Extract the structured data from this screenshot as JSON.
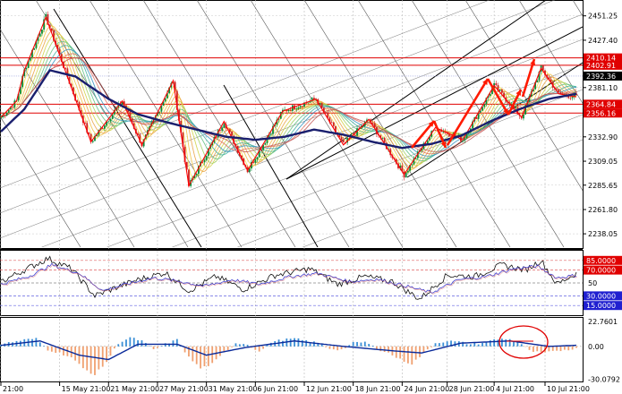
{
  "chart_data": {
    "type": "line",
    "panels": [
      {
        "name": "price",
        "ylim": [
          2225,
          2465
        ],
        "y_ticks": [
          "2451.25",
          "2427.40",
          "2402.91",
          "2381.10",
          "2356.16",
          "2332.90",
          "2309.05",
          "2285.65",
          "2261.80",
          "2238.05"
        ],
        "y_tick_values": [
          2451.25,
          2427.4,
          2402.91,
          2381.1,
          2356.16,
          2332.9,
          2309.05,
          2285.65,
          2261.8,
          2238.05
        ],
        "price_tags": [
          {
            "label": "2410.14",
            "value": 2410.14,
            "style": "red"
          },
          {
            "label": "2402.91",
            "value": 2402.91,
            "style": "red"
          },
          {
            "label": "2392.36",
            "value": 2392.36,
            "style": "black"
          },
          {
            "label": "2364.84",
            "value": 2364.84,
            "style": "red"
          },
          {
            "label": "2356.16",
            "value": 2356.16,
            "style": "red"
          }
        ],
        "horizontal_lines": [
          2410.14,
          2402.91,
          2364.84,
          2356.16
        ],
        "zigzag": [
          {
            "i": 0,
            "v": 2352
          },
          {
            "i": 8,
            "v": 2368
          },
          {
            "i": 12,
            "v": 2398
          },
          {
            "i": 23,
            "v": 2450
          },
          {
            "i": 46,
            "v": 2328
          },
          {
            "i": 62,
            "v": 2368
          },
          {
            "i": 72,
            "v": 2325
          },
          {
            "i": 88,
            "v": 2388
          },
          {
            "i": 96,
            "v": 2285
          },
          {
            "i": 114,
            "v": 2348
          },
          {
            "i": 126,
            "v": 2300
          },
          {
            "i": 144,
            "v": 2358
          },
          {
            "i": 161,
            "v": 2370
          },
          {
            "i": 175,
            "v": 2325
          },
          {
            "i": 188,
            "v": 2350
          },
          {
            "i": 206,
            "v": 2296
          },
          {
            "i": 222,
            "v": 2342
          },
          {
            "i": 236,
            "v": 2330
          },
          {
            "i": 252,
            "v": 2383
          },
          {
            "i": 266,
            "v": 2352
          },
          {
            "i": 276,
            "v": 2400
          },
          {
            "i": 285,
            "v": 2375
          },
          {
            "i": 294,
            "v": 2372
          }
        ],
        "ma_slow": [
          {
            "i": 0,
            "v": 2338
          },
          {
            "i": 12,
            "v": 2360
          },
          {
            "i": 25,
            "v": 2398
          },
          {
            "i": 38,
            "v": 2392
          },
          {
            "i": 55,
            "v": 2370
          },
          {
            "i": 70,
            "v": 2355
          },
          {
            "i": 85,
            "v": 2347
          },
          {
            "i": 100,
            "v": 2340
          },
          {
            "i": 115,
            "v": 2333
          },
          {
            "i": 130,
            "v": 2330
          },
          {
            "i": 145,
            "v": 2333
          },
          {
            "i": 160,
            "v": 2340
          },
          {
            "i": 175,
            "v": 2335
          },
          {
            "i": 190,
            "v": 2328
          },
          {
            "i": 205,
            "v": 2322
          },
          {
            "i": 220,
            "v": 2326
          },
          {
            "i": 235,
            "v": 2334
          },
          {
            "i": 250,
            "v": 2348
          },
          {
            "i": 265,
            "v": 2360
          },
          {
            "i": 280,
            "v": 2370
          },
          {
            "i": 294,
            "v": 2375
          }
        ]
      },
      {
        "name": "oscillator",
        "ylim": [
          0,
          100
        ],
        "y_ticks": [
          "85.0000",
          "70.0000",
          "50",
          "30.0000",
          "15.0000"
        ],
        "y_tick_values": [
          85,
          70,
          50,
          30,
          15
        ],
        "levels": [
          85,
          70,
          50,
          30,
          15
        ],
        "series_a": [
          {
            "i": 0,
            "v": 52
          },
          {
            "i": 12,
            "v": 70
          },
          {
            "i": 24,
            "v": 88
          },
          {
            "i": 36,
            "v": 72
          },
          {
            "i": 48,
            "v": 30
          },
          {
            "i": 58,
            "v": 42
          },
          {
            "i": 70,
            "v": 55
          },
          {
            "i": 84,
            "v": 66
          },
          {
            "i": 96,
            "v": 38
          },
          {
            "i": 110,
            "v": 60
          },
          {
            "i": 124,
            "v": 40
          },
          {
            "i": 140,
            "v": 62
          },
          {
            "i": 158,
            "v": 72
          },
          {
            "i": 172,
            "v": 48
          },
          {
            "i": 186,
            "v": 60
          },
          {
            "i": 200,
            "v": 52
          },
          {
            "i": 214,
            "v": 25
          },
          {
            "i": 228,
            "v": 62
          },
          {
            "i": 242,
            "v": 60
          },
          {
            "i": 256,
            "v": 78
          },
          {
            "i": 268,
            "v": 70
          },
          {
            "i": 276,
            "v": 85
          },
          {
            "i": 284,
            "v": 48
          },
          {
            "i": 294,
            "v": 65
          }
        ],
        "series_b": [
          {
            "i": 0,
            "v": 48
          },
          {
            "i": 14,
            "v": 60
          },
          {
            "i": 26,
            "v": 78
          },
          {
            "i": 40,
            "v": 65
          },
          {
            "i": 52,
            "v": 38
          },
          {
            "i": 64,
            "v": 48
          },
          {
            "i": 78,
            "v": 58
          },
          {
            "i": 92,
            "v": 52
          },
          {
            "i": 104,
            "v": 45
          },
          {
            "i": 118,
            "v": 55
          },
          {
            "i": 132,
            "v": 48
          },
          {
            "i": 148,
            "v": 60
          },
          {
            "i": 162,
            "v": 65
          },
          {
            "i": 178,
            "v": 52
          },
          {
            "i": 192,
            "v": 56
          },
          {
            "i": 206,
            "v": 46
          },
          {
            "i": 220,
            "v": 35
          },
          {
            "i": 234,
            "v": 55
          },
          {
            "i": 248,
            "v": 60
          },
          {
            "i": 262,
            "v": 72
          },
          {
            "i": 274,
            "v": 76
          },
          {
            "i": 284,
            "v": 58
          },
          {
            "i": 294,
            "v": 62
          }
        ]
      },
      {
        "name": "histogram",
        "ylim": [
          -32,
          26
        ],
        "y_ticks": [
          "22.7601",
          "0.00",
          "-30.0792"
        ],
        "y_tick_values": [
          22.7601,
          0,
          -30.0792
        ],
        "histogram": [
          {
            "i": 0,
            "v": 2
          },
          {
            "i": 6,
            "v": 4
          },
          {
            "i": 12,
            "v": 6
          },
          {
            "i": 18,
            "v": 7
          },
          {
            "i": 24,
            "v": -3
          },
          {
            "i": 30,
            "v": -6
          },
          {
            "i": 36,
            "v": -10
          },
          {
            "i": 42,
            "v": -20
          },
          {
            "i": 48,
            "v": -26
          },
          {
            "i": 54,
            "v": -14
          },
          {
            "i": 60,
            "v": 3
          },
          {
            "i": 66,
            "v": 8
          },
          {
            "i": 72,
            "v": 5
          },
          {
            "i": 78,
            "v": -3
          },
          {
            "i": 84,
            "v": 2
          },
          {
            "i": 90,
            "v": 6
          },
          {
            "i": 96,
            "v": -10
          },
          {
            "i": 102,
            "v": -20
          },
          {
            "i": 108,
            "v": -16
          },
          {
            "i": 114,
            "v": -6
          },
          {
            "i": 120,
            "v": 3
          },
          {
            "i": 126,
            "v": 2
          },
          {
            "i": 132,
            "v": -5
          },
          {
            "i": 138,
            "v": 4
          },
          {
            "i": 144,
            "v": 6
          },
          {
            "i": 150,
            "v": 7
          },
          {
            "i": 156,
            "v": 5
          },
          {
            "i": 162,
            "v": 3
          },
          {
            "i": 168,
            "v": -2
          },
          {
            "i": 174,
            "v": -3
          },
          {
            "i": 180,
            "v": 3
          },
          {
            "i": 186,
            "v": 4
          },
          {
            "i": 192,
            "v": -2
          },
          {
            "i": 198,
            "v": -6
          },
          {
            "i": 204,
            "v": -12
          },
          {
            "i": 210,
            "v": -16
          },
          {
            "i": 216,
            "v": -6
          },
          {
            "i": 222,
            "v": 3
          },
          {
            "i": 228,
            "v": 5
          },
          {
            "i": 234,
            "v": 4
          },
          {
            "i": 240,
            "v": 2
          },
          {
            "i": 246,
            "v": 3
          },
          {
            "i": 252,
            "v": 6
          },
          {
            "i": 258,
            "v": 7
          },
          {
            "i": 264,
            "v": 5
          },
          {
            "i": 270,
            "v": -4
          },
          {
            "i": 276,
            "v": -6
          },
          {
            "i": 282,
            "v": -5
          },
          {
            "i": 288,
            "v": -3
          },
          {
            "i": 294,
            "v": -2
          }
        ],
        "signal": [
          {
            "i": 0,
            "v": 1
          },
          {
            "i": 20,
            "v": 5
          },
          {
            "i": 40,
            "v": -8
          },
          {
            "i": 55,
            "v": -12
          },
          {
            "i": 70,
            "v": 2
          },
          {
            "i": 90,
            "v": 2
          },
          {
            "i": 105,
            "v": -8
          },
          {
            "i": 125,
            "v": -1
          },
          {
            "i": 150,
            "v": 5
          },
          {
            "i": 175,
            "v": 0
          },
          {
            "i": 200,
            "v": -4
          },
          {
            "i": 215,
            "v": -6
          },
          {
            "i": 235,
            "v": 3
          },
          {
            "i": 260,
            "v": 5
          },
          {
            "i": 280,
            "v": 0
          },
          {
            "i": 294,
            "v": 1
          }
        ]
      }
    ],
    "x_ticks": [
      "21:00",
      "15 May 21:00",
      "21 May 21:00",
      "27 May 21:00",
      "31 May 21:00",
      "6 Jun 21:00",
      "12 Jun 21:00",
      "18 Jun 21:00",
      "24 Jun 21:00",
      "28 Jun 21:00",
      "4 Jul 21:00",
      "10 Jul 21:00"
    ],
    "x_tick_index": [
      0,
      30,
      55,
      80,
      105,
      130,
      155,
      180,
      205,
      228,
      252,
      278
    ],
    "n_points": 295,
    "colors": {
      "up": "#0a8a3a",
      "down": "#cc2222",
      "zigzag": "#ff0000",
      "ma_slow": "#1a1f6e",
      "arrows": "#ff1a00",
      "hist_pos": "#3a8fd6",
      "hist_neg": "#f0a070",
      "signal": "#0a2a9a",
      "tag_red": "#e00000",
      "level_red": "#e06060",
      "level_blue": "#6060e0",
      "circle": "#e00000"
    }
  }
}
